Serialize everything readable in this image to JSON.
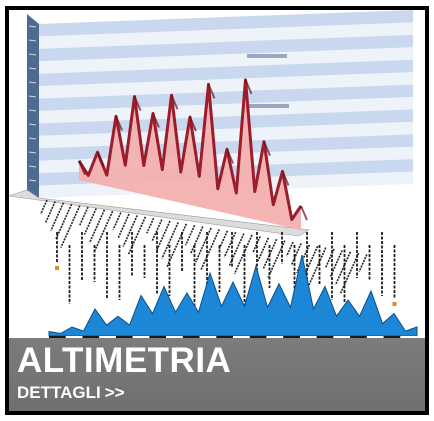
{
  "card": {
    "title": "ALTIMETRIA",
    "link_label": "DETTAGLI",
    "link_arrow": ">>"
  },
  "chart_3d": {
    "type": "area",
    "description_kind": "3d-elevation-profile",
    "peaks": [
      0.12,
      0.2,
      0.45,
      0.6,
      0.52,
      0.66,
      0.55,
      0.78,
      0.4,
      0.86,
      0.5,
      0.34,
      0.15
    ],
    "colors": {
      "fill": "#f3b0b0",
      "edge": "#9b1d2b",
      "wall_band_a": "#c9d8ee",
      "wall_band_b": "#eef2f9",
      "floor": "#dcdcdc"
    }
  },
  "chart_2d": {
    "type": "area",
    "description_kind": "elevation-profile",
    "peaks": [
      0.05,
      0.1,
      0.3,
      0.22,
      0.45,
      0.55,
      0.48,
      0.7,
      0.6,
      0.78,
      0.58,
      0.9,
      0.55,
      0.4,
      0.5,
      0.25,
      0.1
    ],
    "colors": {
      "fill": "#1b87d6",
      "edge": "#0d4f8e",
      "baseline_dark": "#1a1a1a",
      "baseline_light": "#ffffff"
    }
  }
}
